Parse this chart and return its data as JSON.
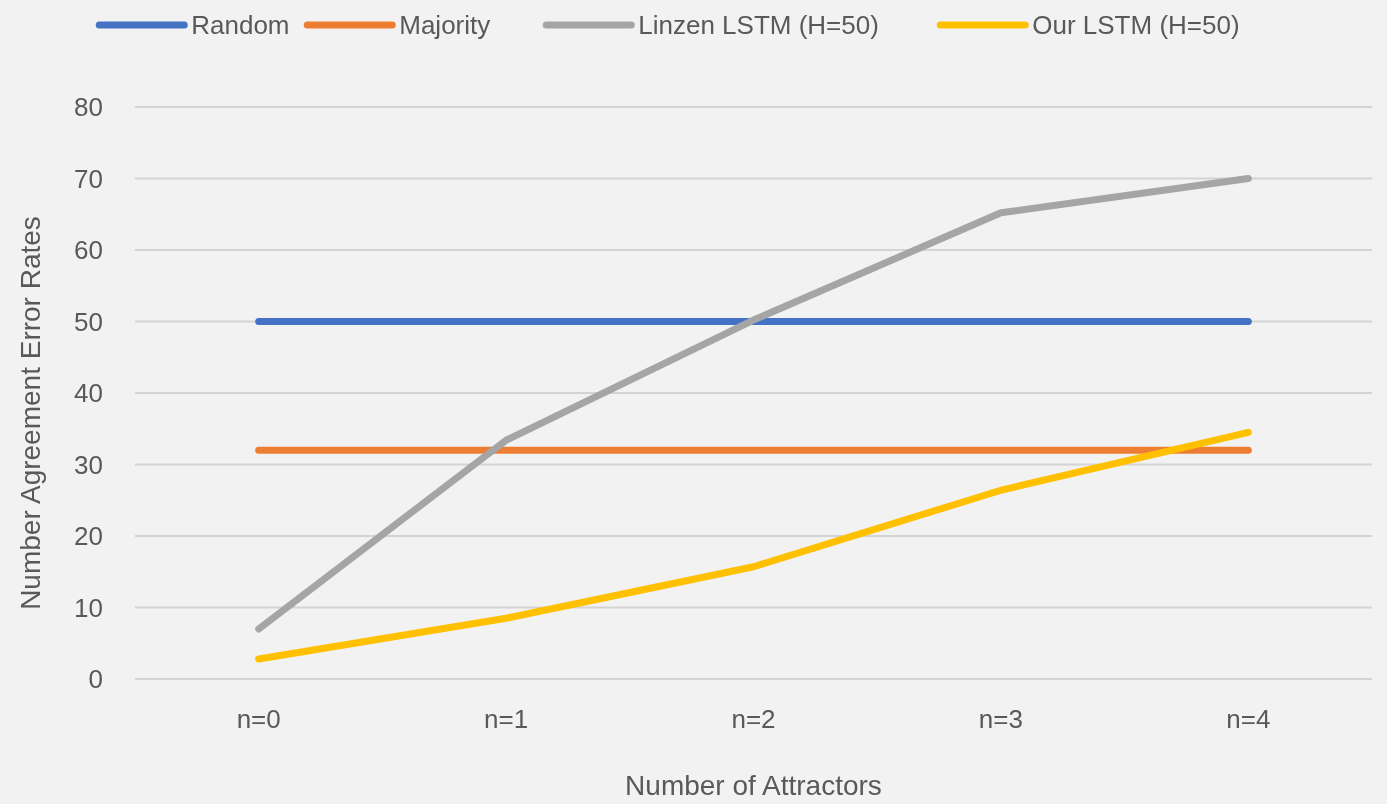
{
  "chart_data": {
    "type": "line",
    "xlabel": "Number of Attractors",
    "ylabel": "Number Agreement Error Rates",
    "categories": [
      "n=0",
      "n=1",
      "n=2",
      "n=3",
      "n=4"
    ],
    "series": [
      {
        "name": "Random",
        "color": "#4472c4",
        "values": [
          50,
          50,
          50,
          50,
          50
        ]
      },
      {
        "name": "Majority",
        "color": "#ed7d31",
        "values": [
          32,
          32,
          32,
          32,
          32
        ]
      },
      {
        "name": "Linzen LSTM (H=50)",
        "color": "#a5a5a5",
        "values": [
          7,
          33.4,
          50.2,
          65.2,
          70
        ]
      },
      {
        "name": "Our LSTM (H=50)",
        "color": "#ffc000",
        "values": [
          2.8,
          8.5,
          15.7,
          26.4,
          34.5
        ]
      }
    ],
    "ylim": [
      0,
      80
    ],
    "yticks": [
      0,
      10,
      20,
      30,
      40,
      50,
      60,
      70,
      80
    ],
    "grid": "y",
    "legend": "top",
    "marker": "none",
    "line_style": "solid"
  }
}
